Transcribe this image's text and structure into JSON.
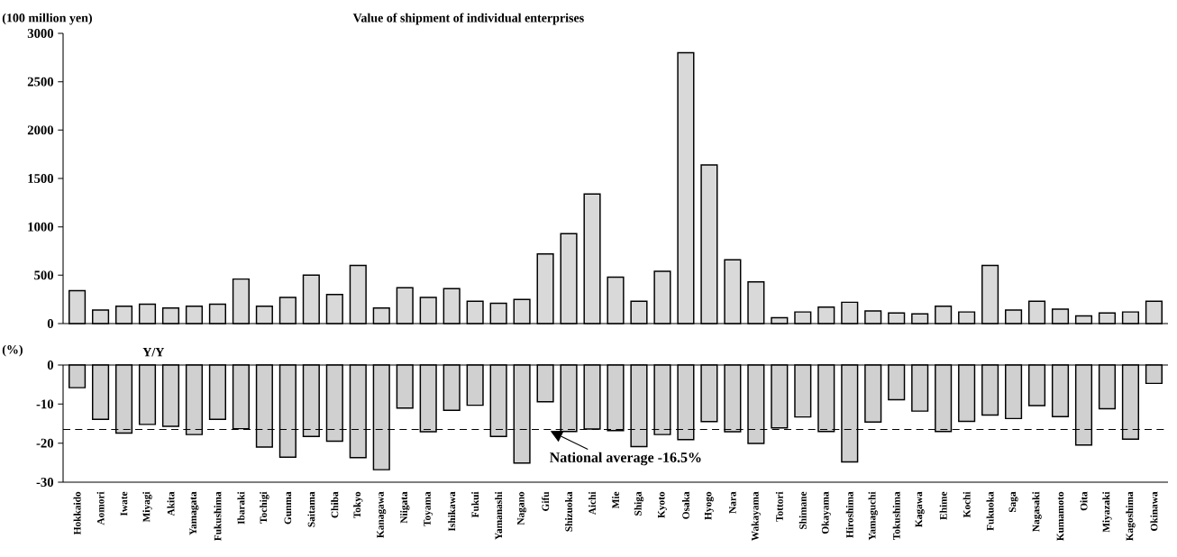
{
  "chart_data": [
    {
      "type": "bar",
      "title": "Value of shipment of individual enterprises",
      "ylabel": "(100 million yen)",
      "categories": [
        null,
        null,
        null,
        null,
        null,
        null,
        null,
        null,
        null,
        null,
        null,
        null,
        null,
        null,
        null,
        null,
        null,
        null,
        null,
        null,
        null,
        null,
        null,
        null,
        null,
        null,
        null,
        null,
        null,
        null,
        null,
        null,
        null,
        null,
        null,
        null,
        null,
        null,
        null,
        null,
        null,
        null,
        null,
        null,
        null,
        null,
        null
      ],
      "values": [
        340,
        140,
        180,
        200,
        160,
        180,
        200,
        460,
        180,
        270,
        500,
        300,
        600,
        160,
        370,
        270,
        360,
        230,
        210,
        250,
        720,
        930,
        1340,
        480,
        230,
        540,
        2800,
        1640,
        660,
        430,
        60,
        120,
        170,
        220,
        130,
        110,
        100,
        180,
        120,
        600,
        140,
        230,
        150,
        80,
        110,
        120,
        230
      ],
      "color": "#d9d9d9",
      "ylim": [
        0,
        3000
      ],
      "yticks": [
        0,
        500,
        1000,
        1500,
        2000,
        2500,
        3000
      ],
      "tick_labels": "y"
    },
    {
      "type": "bar",
      "title": "Y/Y",
      "ylabel": "(%)",
      "categories": [
        "Hokkaido",
        "Aomori",
        "Iwate",
        "Miyagi",
        "Akita",
        "Yamagata",
        "Fukushima",
        "Ibaraki",
        "Tochigi",
        "Gunma",
        "Saitama",
        "Chiba",
        "Tokyo",
        "Kanagawa",
        "Niigata",
        "Toyama",
        "Ishikawa",
        "Fukui",
        "Yamanashi",
        "Nagano",
        "Gifu",
        "Shizuoka",
        "Aichi",
        "Mie",
        "Shiga",
        "Kyoto",
        "Osaka",
        "Hyogo",
        "Nara",
        "Wakayama",
        "Tottori",
        "Shimane",
        "Okayama",
        "Hiroshima",
        "Yamaguchi",
        "Tokushima",
        "Kagawa",
        "Ehime",
        "Kochi",
        "Fukuoka",
        "Saga",
        "Nagasaki",
        "Kumamoto",
        "Oita",
        "Miyazaki",
        "Kagoshima",
        "Okinawa"
      ],
      "values": [
        -5.8,
        -13.9,
        -17.4,
        -15.2,
        -15.7,
        -17.8,
        -13.9,
        -16.3,
        -21.0,
        -23.6,
        -18.3,
        -19.5,
        -23.7,
        -26.8,
        -11.0,
        -17.1,
        -11.6,
        -10.3,
        -18.3,
        -25.1,
        -9.4,
        -17.0,
        -16.4,
        -16.8,
        -20.9,
        -17.8,
        -19.1,
        -14.5,
        -17.1,
        -20.1,
        -16.1,
        -13.3,
        -17.0,
        -24.8,
        -14.6,
        -8.9,
        -11.8,
        -17.0,
        -14.4,
        -12.8,
        -13.7,
        -10.4,
        -13.2,
        -20.5,
        -11.2,
        -19.0,
        -4.7
      ],
      "color": "#d0d0d0",
      "ylim": [
        -30,
        0
      ],
      "yticks": [
        -30,
        -20,
        -10,
        0
      ],
      "ref_lines": [
        {
          "axis": "y",
          "value": -16.5,
          "label": "National average -16.5%",
          "line_style": "dashed",
          "color": "#000000"
        }
      ]
    }
  ]
}
